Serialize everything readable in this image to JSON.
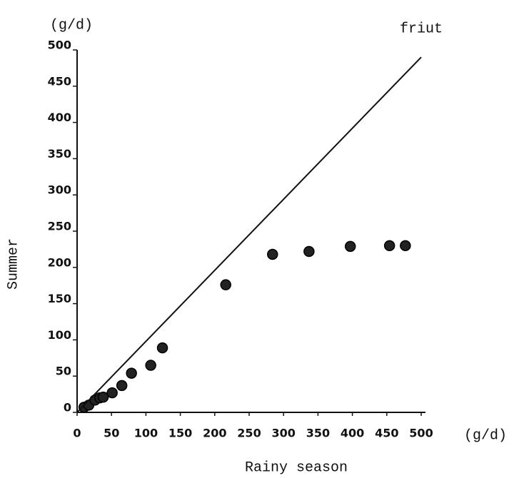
{
  "chart_data": {
    "type": "scatter",
    "x_label": "Rainy season",
    "y_label": "Summer",
    "y_unit": "(g/d)",
    "x_unit": "(g/d)",
    "annotation": "friut",
    "xlim": [
      0,
      500
    ],
    "ylim": [
      0,
      500
    ],
    "xticks": [
      0,
      50,
      100,
      150,
      200,
      250,
      300,
      350,
      400,
      450,
      500
    ],
    "yticks": [
      0,
      50,
      100,
      150,
      200,
      250,
      300,
      350,
      400,
      450,
      500
    ],
    "series": [
      {
        "type": "scatter",
        "color": "#222222",
        "x": [
          10,
          17,
          26,
          33,
          38,
          51,
          65,
          79,
          107,
          124,
          216,
          284,
          337,
          397,
          454,
          477
        ],
        "values": [
          7,
          10,
          17,
          20,
          21,
          27,
          37,
          54,
          65,
          89,
          176,
          218,
          222,
          229,
          230,
          230
        ]
      },
      {
        "type": "line",
        "color": "#111111",
        "x": [
          0,
          500
        ],
        "values": [
          0,
          490
        ]
      }
    ]
  }
}
